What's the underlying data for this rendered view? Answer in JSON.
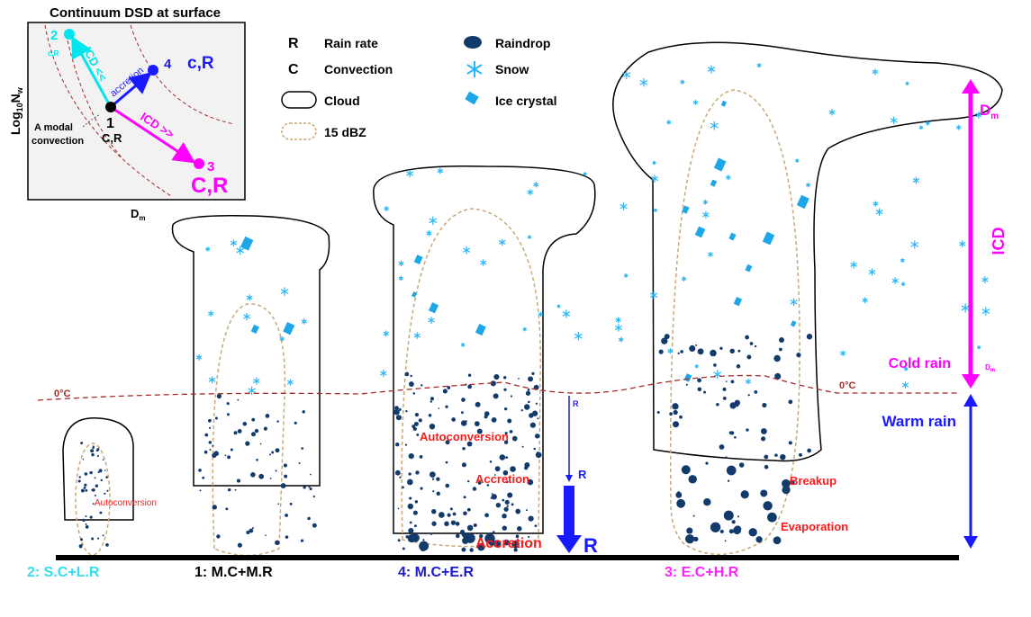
{
  "inset": {
    "title": "Continuum DSD at surface",
    "ylabel": "Log10Nw",
    "ylabel_main": "Log",
    "ylabel_sub": "10",
    "ylabel_n": "N",
    "ylabel_nsub": "w",
    "xlabel_main": "D",
    "xlabel_sub": "m",
    "points": [
      {
        "id": "1",
        "sub": "C,R",
        "color": "#000000"
      },
      {
        "id": "2",
        "sub": "c,R",
        "color": "#00e5ee"
      },
      {
        "id": "3",
        "sub": "C,R",
        "color": "#ff00ff"
      },
      {
        "id": "4",
        "sub": "c,R",
        "color": "#1a1aff"
      }
    ],
    "arrow_labels": {
      "icd_less": "ICD <<",
      "icd_more": "ICD >>",
      "accretion": "accretion"
    },
    "annotation": "A modal convection",
    "annotation_line1": "A modal",
    "annotation_line2": "convection"
  },
  "legend": {
    "r_key": "R",
    "r_label": "Rain rate",
    "c_key": "C",
    "c_label": "Convection",
    "cloud_label": "Cloud",
    "dbz_label": "15 dBZ",
    "raindrop_label": "Raindrop",
    "snow_label": "Snow",
    "ice_label": "Ice crystal"
  },
  "freezing_level": "0°C",
  "processes": {
    "autoconversion_small": "Autoconversion",
    "autoconversion": "Autoconversion",
    "accretion": "Accretion",
    "accretion_large": "Accretion",
    "breakup": "Breakup",
    "evaporation": "Evaporation"
  },
  "rain_rate": {
    "small": "R",
    "medium": "R",
    "large": "R"
  },
  "right_axis": {
    "icd": "ICD",
    "cold_rain": "Cold rain",
    "warm_rain": "Warm rain",
    "dm_main": "D",
    "dm_sub": "m"
  },
  "clouds": [
    {
      "label": "2: S.C+L.R",
      "color": "#33ddee"
    },
    {
      "label": "1: M.C+M.R",
      "color": "#000000"
    },
    {
      "label": "4: M.C+E.R",
      "color": "#1a1acc"
    },
    {
      "label": "3: E.C+H.R",
      "color": "#ff22ff"
    }
  ],
  "colors": {
    "raindrop": "#123a6b",
    "snow": "#29b6f6",
    "ice": "#1ea7e8",
    "freezing": "#a52a2a",
    "dbz": "#c8a878",
    "process": "#ff1a1a"
  }
}
